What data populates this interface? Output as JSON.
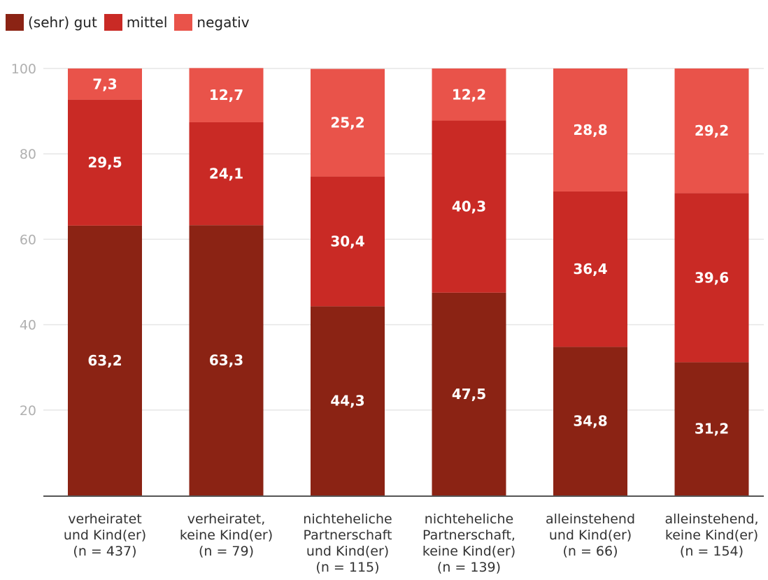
{
  "chart_data": {
    "type": "bar",
    "stacked": true,
    "title": "",
    "xlabel": "",
    "ylabel": "",
    "ylim": [
      0,
      100
    ],
    "yticks": [
      20,
      40,
      60,
      80,
      100
    ],
    "grid": true,
    "legend_position": "top-left",
    "categories": [
      [
        "verheiratet",
        "und Kind(er)",
        "(n = 437)"
      ],
      [
        "verheiratet,",
        "keine Kind(er)",
        "(n = 79)"
      ],
      [
        "nichteheliche",
        "Partnerschaft",
        "und Kind(er)",
        "(n = 115)"
      ],
      [
        "nichteheliche",
        "Partnerschaft,",
        "keine Kind(er)",
        "(n = 139)"
      ],
      [
        "alleinstehend",
        "und Kind(er)",
        "(n = 66)"
      ],
      [
        "alleinstehend,",
        "keine Kind(er)",
        "(n = 154)"
      ]
    ],
    "series": [
      {
        "name": "(sehr) gut",
        "color": "#8b2314",
        "values": [
          63.2,
          63.3,
          44.3,
          47.5,
          34.8,
          31.2
        ],
        "labels": [
          "63,2",
          "63,3",
          "44,3",
          "47,5",
          "34,8",
          "31,2"
        ]
      },
      {
        "name": "mittel",
        "color": "#c92a25",
        "values": [
          29.5,
          24.1,
          30.4,
          40.3,
          36.4,
          39.6
        ],
        "labels": [
          "29,5",
          "24,1",
          "30,4",
          "40,3",
          "36,4",
          "39,6"
        ]
      },
      {
        "name": "negativ",
        "color": "#e9534a",
        "values": [
          7.3,
          12.7,
          25.2,
          12.2,
          28.8,
          29.2
        ],
        "labels": [
          "7,3",
          "12,7",
          "25,2",
          "12,2",
          "28,8",
          "29,2"
        ]
      }
    ]
  }
}
